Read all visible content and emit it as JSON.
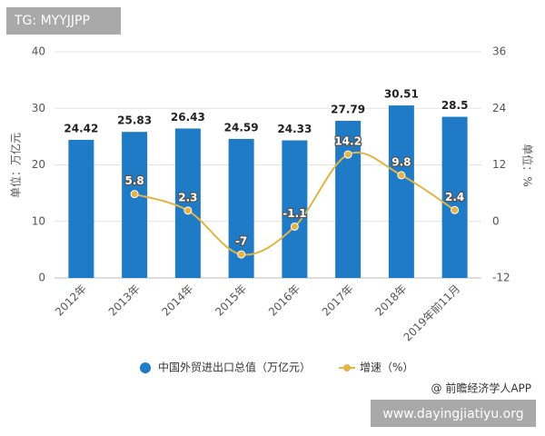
{
  "header": {
    "tag": "TG: MYYJJPP"
  },
  "chart_data": {
    "type": "combo",
    "categories": [
      "2012年",
      "2013年",
      "2014年",
      "2015年",
      "2016年",
      "2017年",
      "2018年",
      "2019年前11月"
    ],
    "ylabel": "单位：万亿元",
    "y2label": "单位：%",
    "ylim": [
      0,
      40
    ],
    "yticks": [
      0,
      10,
      20,
      30,
      40
    ],
    "y2lim": [
      -12,
      36
    ],
    "y2ticks": [
      -12,
      0,
      12,
      24,
      36
    ],
    "grid": true,
    "legend": "bottom",
    "series": [
      {
        "name": "中国外贸进出口总值（万亿元）",
        "type": "bar",
        "color": "#1f7bc6",
        "values": [
          24.42,
          25.83,
          26.43,
          24.59,
          24.33,
          27.79,
          30.51,
          28.5
        ]
      },
      {
        "name": "增速（%）",
        "type": "line",
        "axis": "y2",
        "color": "#e3b445",
        "values": [
          null,
          5.8,
          2.3,
          -7,
          -1.1,
          14.2,
          9.8,
          2.4
        ]
      }
    ]
  },
  "footer": {
    "source": "@ 前瞻经济学人APP",
    "site": "www.dayingjiatiyu.org"
  }
}
